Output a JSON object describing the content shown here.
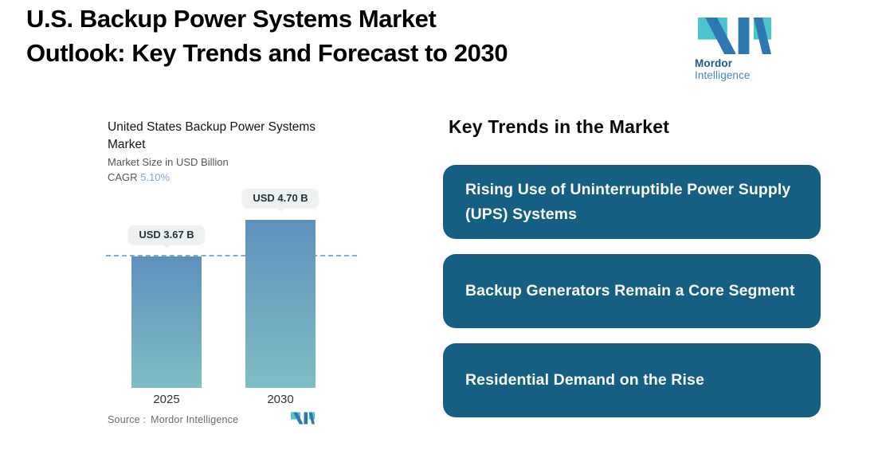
{
  "header": {
    "title_lines": [
      "U.S. Backup Power Systems Market",
      "Outlook: Key Trends and Forecast to 2030"
    ],
    "brand": {
      "bold": "Mordor",
      "light": "Intelligence"
    }
  },
  "chart": {
    "title": "United States Backup Power Systems Market",
    "subtitle": "Market Size in USD Billion",
    "cagr_label": "CAGR",
    "cagr_value": "5.10%",
    "source_label": "Source :",
    "source_value": "Mordor Intelligence"
  },
  "chart_data": {
    "type": "bar",
    "categories": [
      "2025",
      "2030"
    ],
    "values": [
      3.67,
      4.7
    ],
    "value_labels": [
      "USD 3.67 B",
      "USD 4.70 B"
    ],
    "title": "United States Backup Power Systems Market",
    "subtitle": "Market Size in USD Billion",
    "unit": "USD Billion",
    "cagr": "5.10%",
    "ylim": [
      0,
      4.7
    ],
    "reference_line_at": 3.67,
    "grid": false,
    "legend": false
  },
  "trends": {
    "heading": "Key Trends in the Market",
    "items": [
      "Rising Use of Uninterruptible Power Supply (UPS) Systems",
      "Backup Generators Remain a Core Segment",
      "Residential Demand on the Rise"
    ]
  },
  "colors": {
    "trend_box": "#155F82",
    "trend_text": "#FAFAFA",
    "bar_gradient_top": "#5E90BC",
    "bar_gradient_bottom": "#7FBEC4",
    "dashed_line": "#85ABD0",
    "cagr_value": "#79A9D3",
    "label_pill_bg": "#EDF2F1",
    "logo_blue": "#2F77B0",
    "logo_teal": "#4BC4CD"
  }
}
